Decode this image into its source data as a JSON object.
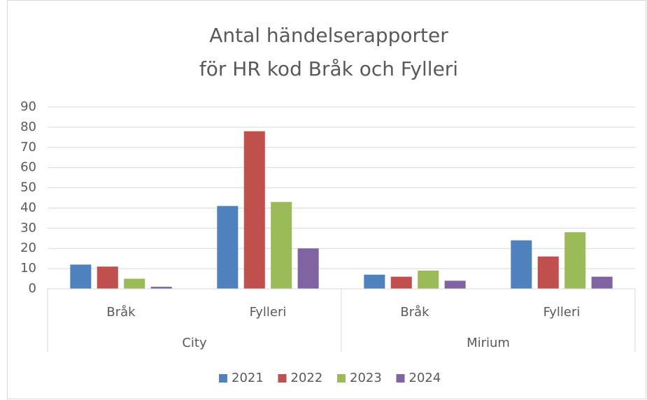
{
  "chart_data": {
    "type": "bar",
    "title": [
      "Antal händelserapporter",
      "för HR kod Bråk och Fylleri"
    ],
    "groups": [
      {
        "name": "City",
        "categories": [
          "Bråk",
          "Fylleri"
        ]
      },
      {
        "name": "Mirium",
        "categories": [
          "Bråk",
          "Fylleri"
        ]
      }
    ],
    "series": [
      {
        "name": "2021",
        "color": "#4f81bd",
        "values": [
          12,
          41,
          7,
          24
        ]
      },
      {
        "name": "2022",
        "color": "#c0504d",
        "values": [
          11,
          78,
          6,
          16
        ]
      },
      {
        "name": "2023",
        "color": "#9bbb59",
        "values": [
          5,
          43,
          9,
          28
        ]
      },
      {
        "name": "2024",
        "color": "#8064a2",
        "values": [
          1,
          20,
          4,
          6
        ]
      }
    ],
    "ylim": [
      0,
      90
    ],
    "yticks": [
      0,
      10,
      20,
      30,
      40,
      50,
      60,
      70,
      80,
      90
    ],
    "grid": true,
    "legend": "bottom"
  }
}
